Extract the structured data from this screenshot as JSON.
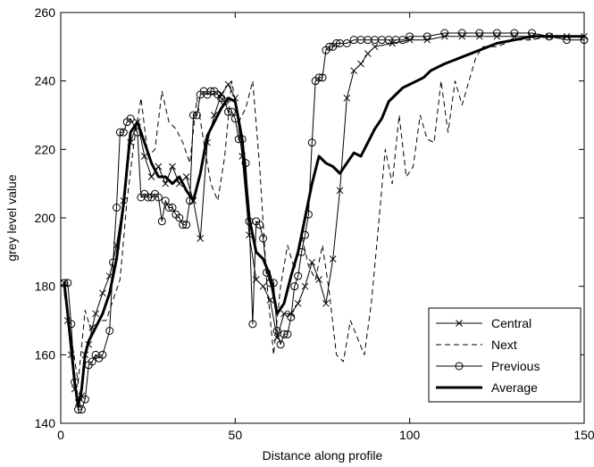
{
  "chart_data": {
    "type": "line",
    "xlabel": "Distance along profile",
    "ylabel": "grey level value",
    "xlim": [
      0,
      150
    ],
    "ylim": [
      140,
      260
    ],
    "xticks": [
      "0",
      "50",
      "100",
      "150"
    ],
    "yticks": [
      "140",
      "160",
      "180",
      "200",
      "220",
      "240",
      "260"
    ],
    "grid": false,
    "legend_position": "bottom-right",
    "series": [
      {
        "name": "Central",
        "color": "#000000",
        "style": "solid-x",
        "x": [
          1,
          2,
          3,
          4,
          5,
          6,
          7,
          8,
          9,
          10,
          12,
          14,
          16,
          18,
          20,
          22,
          24,
          26,
          28,
          30,
          32,
          34,
          36,
          38,
          40,
          42,
          44,
          46,
          48,
          50,
          52,
          54,
          56,
          58,
          60,
          62,
          64,
          66,
          68,
          70,
          72,
          74,
          76,
          78,
          80,
          82,
          84,
          86,
          88,
          90,
          95,
          100,
          105,
          110,
          115,
          120,
          125,
          130,
          135,
          140,
          145,
          150
        ],
        "y": [
          181,
          170,
          160,
          150,
          146,
          148,
          160,
          163,
          168,
          172,
          178,
          183,
          192,
          205,
          222,
          228,
          218,
          212,
          215,
          210,
          215,
          210,
          212,
          205,
          194,
          222,
          230,
          236,
          239,
          235,
          218,
          195,
          182,
          180,
          176,
          165,
          172,
          172,
          175,
          180,
          187,
          182,
          175,
          188,
          208,
          235,
          243,
          245,
          248,
          250,
          251,
          252,
          252,
          253,
          253,
          253,
          253,
          253,
          253,
          253,
          253,
          253
        ]
      },
      {
        "name": "Next",
        "color": "#000000",
        "style": "dashed",
        "x": [
          1,
          3,
          5,
          7,
          9,
          11,
          13,
          15,
          17,
          19,
          21,
          23,
          25,
          27,
          29,
          31,
          33,
          35,
          37,
          39,
          41,
          43,
          45,
          47,
          49,
          51,
          53,
          55,
          57,
          59,
          61,
          63,
          65,
          67,
          69,
          71,
          73,
          75,
          77,
          79,
          81,
          83,
          85,
          87,
          89,
          91,
          93,
          95,
          97,
          99,
          101,
          103,
          105,
          107,
          109,
          111,
          113,
          115,
          117,
          119,
          121,
          125,
          130,
          135,
          140,
          145,
          150
        ],
        "y": [
          178,
          165,
          152,
          173,
          166,
          170,
          170,
          176,
          182,
          205,
          222,
          235,
          218,
          220,
          237,
          228,
          226,
          222,
          216,
          235,
          222,
          210,
          205,
          218,
          240,
          228,
          232,
          240,
          215,
          182,
          160,
          180,
          192,
          185,
          195,
          186,
          182,
          192,
          178,
          160,
          158,
          170,
          165,
          160,
          175,
          197,
          220,
          210,
          230,
          212,
          215,
          230,
          223,
          222,
          240,
          225,
          240,
          233,
          240,
          247,
          250,
          250,
          252,
          252,
          253,
          253,
          253
        ]
      },
      {
        "name": "Previous",
        "color": "#000000",
        "style": "solid-o",
        "x": [
          1,
          2,
          3,
          4,
          5,
          6,
          7,
          8,
          9,
          10,
          11,
          12,
          14,
          15,
          16,
          17,
          18,
          19,
          20,
          22,
          23,
          24,
          25,
          26,
          27,
          28,
          29,
          30,
          31,
          32,
          33,
          34,
          35,
          36,
          37,
          38,
          39,
          40,
          41,
          42,
          43,
          44,
          45,
          46,
          47,
          48,
          49,
          50,
          51,
          52,
          53,
          54,
          55,
          56,
          57,
          58,
          59,
          60,
          61,
          62,
          63,
          64,
          65,
          66,
          67,
          68,
          69,
          70,
          71,
          72,
          73,
          74,
          75,
          76,
          77,
          78,
          79,
          80,
          82,
          84,
          86,
          88,
          90,
          92,
          94,
          96,
          98,
          100,
          105,
          110,
          115,
          120,
          125,
          130,
          135,
          140,
          145,
          150
        ],
        "y": [
          181,
          181,
          169,
          152,
          144,
          144,
          147,
          157,
          158,
          160,
          159,
          160,
          167,
          187,
          203,
          225,
          225,
          228,
          229,
          225,
          206,
          207,
          206,
          206,
          207,
          206,
          199,
          205,
          203,
          203,
          201,
          200,
          198,
          198,
          205,
          230,
          230,
          236,
          237,
          236,
          237,
          237,
          236,
          235,
          234,
          231,
          231,
          229,
          223,
          223,
          216,
          199,
          169,
          199,
          198,
          194,
          184,
          181,
          181,
          167,
          163,
          166,
          166,
          171,
          180,
          183,
          190,
          195,
          201,
          222,
          240,
          241,
          241,
          249,
          250,
          250,
          251,
          251,
          251,
          252,
          252,
          252,
          252,
          252,
          252,
          252,
          252,
          253,
          253,
          254,
          254,
          254,
          254,
          254,
          254,
          253,
          252,
          252
        ]
      },
      {
        "name": "Average",
        "color": "#000000",
        "style": "thick",
        "x": [
          1,
          2,
          3,
          4,
          5,
          6,
          7,
          8,
          10,
          12,
          14,
          16,
          18,
          20,
          22,
          24,
          26,
          28,
          30,
          32,
          34,
          36,
          38,
          40,
          42,
          44,
          46,
          48,
          50,
          52,
          54,
          56,
          58,
          60,
          62,
          64,
          66,
          68,
          70,
          72,
          74,
          76,
          78,
          80,
          82,
          84,
          86,
          88,
          90,
          92,
          94,
          96,
          98,
          100,
          102,
          104,
          106,
          108,
          110,
          115,
          120,
          125,
          130,
          135,
          140,
          145,
          150
        ],
        "y": [
          181,
          172,
          162,
          152,
          145,
          150,
          160,
          164,
          168,
          172,
          178,
          188,
          204,
          225,
          228,
          222,
          216,
          212,
          212,
          210,
          212,
          208,
          205,
          213,
          224,
          228,
          232,
          235,
          234,
          223,
          200,
          190,
          188,
          183,
          172,
          175,
          183,
          190,
          200,
          210,
          218,
          216,
          215,
          213,
          216,
          219,
          218,
          222,
          226,
          229,
          234,
          236,
          238,
          239,
          240,
          241,
          243,
          244,
          245,
          247,
          249,
          251,
          252,
          253,
          253,
          253,
          253
        ]
      }
    ]
  }
}
